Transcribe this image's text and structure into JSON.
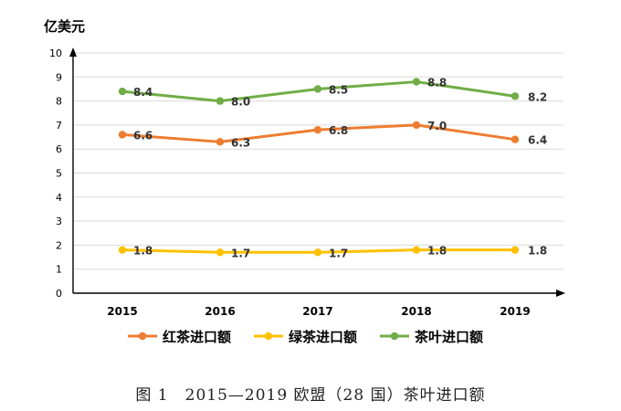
{
  "chart_data": {
    "type": "line",
    "unit_label": "亿美元",
    "categories": [
      "2015",
      "2016",
      "2017",
      "2018",
      "2019"
    ],
    "ylim": [
      0,
      10
    ],
    "yticks": [
      0,
      1,
      2,
      3,
      4,
      5,
      6,
      7,
      8,
      9,
      10
    ],
    "grid": true,
    "legend_position": "bottom",
    "series": [
      {
        "name": "红茶进口额",
        "color": "#ED7D31",
        "values": [
          6.6,
          6.3,
          6.8,
          7.0,
          6.4
        ],
        "labels": [
          "6.6",
          "6.3",
          "6.8",
          "7.0",
          "6.4"
        ]
      },
      {
        "name": "绿茶进口额",
        "color": "#FFC000",
        "values": [
          1.8,
          1.7,
          1.7,
          1.8,
          1.8
        ],
        "labels": [
          "1.8",
          "1.7",
          "1.7",
          "1.8",
          "1.8"
        ]
      },
      {
        "name": "茶叶进口额",
        "color": "#70AD47",
        "values": [
          8.4,
          8.0,
          8.5,
          8.8,
          8.2
        ],
        "labels": [
          "8.4",
          "8.0",
          "8.5",
          "8.8",
          "8.2"
        ]
      }
    ]
  },
  "caption": "图 1　2015—2019 欧盟（28 国）茶叶进口额"
}
